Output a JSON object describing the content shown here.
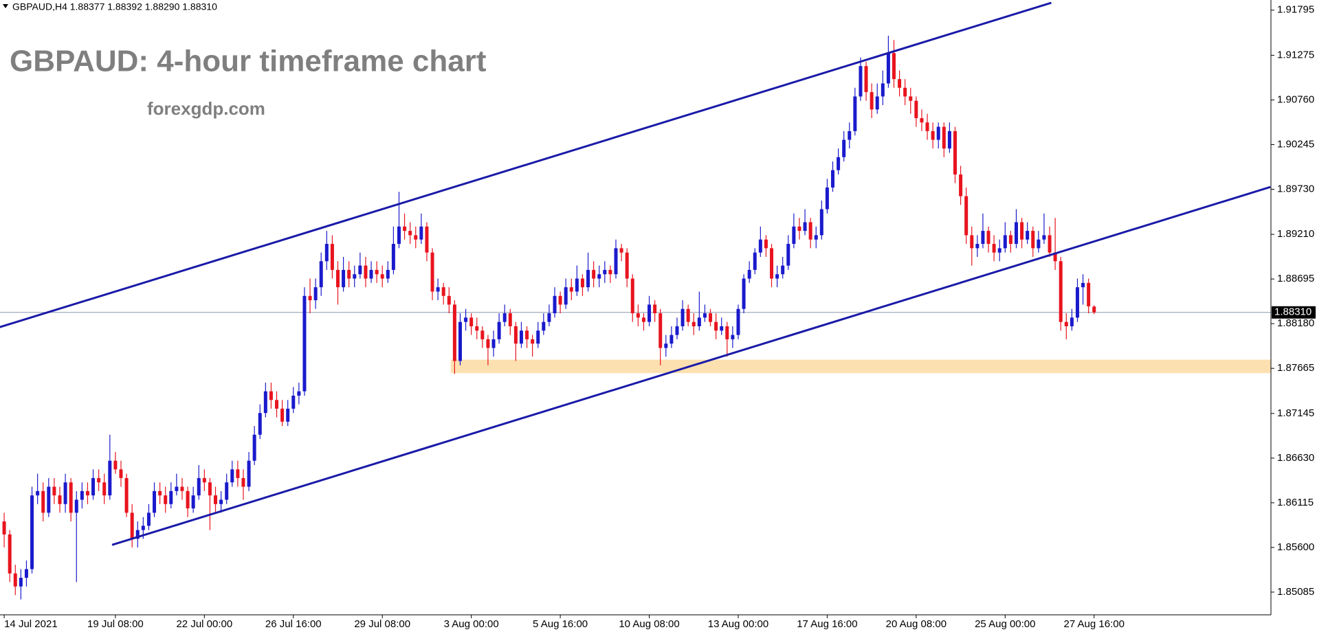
{
  "chart_data": {
    "type": "candlestick",
    "header": "GBPAUD,H4  1.88377 1.88392 1.88290 1.88310",
    "title": "GBPAUD: 4-hour timeframe chart",
    "subtitle": "forexgdp.com",
    "up_color": "#1a1acc",
    "down_color": "#e8141e",
    "ylim": [
      1.84823,
      1.91912
    ],
    "yticks": [
      1.91795,
      1.91275,
      {
        "value": 1.9076,
        "label": "1.90760"
      },
      1.90245,
      {
        "value": 1.8973,
        "label": "1.89730"
      },
      {
        "value": 1.8921,
        "label": "1.89210"
      },
      1.88695,
      {
        "value": 1.8818,
        "label": "1.88180"
      },
      1.87665,
      1.87145,
      {
        "value": 1.8663,
        "label": "1.86630"
      },
      1.86115,
      {
        "value": 1.856,
        "label": "1.85600"
      },
      1.85085
    ],
    "price_line": {
      "value": 1.8831,
      "label": "1.88310"
    },
    "zone": {
      "from": 80.3,
      "low": 1.8761,
      "high": 1.87765,
      "color": "#fde0b0"
    },
    "trendlines": [
      {
        "x": [
          -0.8,
          188.3
        ],
        "y": [
          1.8814,
          1.9188
        ],
        "color": "#1a1aa8"
      },
      {
        "x": [
          19.4,
          227.7
        ],
        "y": [
          1.85629,
          1.89756
        ],
        "color": "#1a1aa8"
      }
    ],
    "categories": [
      "14 Jul 2021",
      null,
      null,
      null,
      null,
      null,
      null,
      null,
      null,
      null,
      null,
      null,
      null,
      null,
      null,
      null,
      null,
      null,
      null,
      null,
      "19 Jul 08:00",
      null,
      null,
      null,
      null,
      null,
      null,
      null,
      null,
      null,
      null,
      null,
      null,
      null,
      null,
      null,
      "22 Jul 00:00",
      null,
      null,
      null,
      null,
      null,
      null,
      null,
      null,
      null,
      null,
      null,
      null,
      null,
      null,
      null,
      "26 Jul 16:00",
      null,
      null,
      null,
      null,
      null,
      null,
      null,
      null,
      null,
      null,
      null,
      null,
      null,
      null,
      null,
      "29 Jul 08:00",
      null,
      null,
      null,
      null,
      null,
      null,
      null,
      null,
      null,
      null,
      null,
      null,
      null,
      null,
      null,
      "3 Aug 00:00",
      null,
      null,
      null,
      null,
      null,
      null,
      null,
      null,
      null,
      null,
      null,
      null,
      null,
      null,
      null,
      "5 Aug 16:00",
      null,
      null,
      null,
      null,
      null,
      null,
      null,
      null,
      null,
      null,
      null,
      null,
      null,
      null,
      null,
      "10 Aug 08:00",
      null,
      null,
      null,
      null,
      null,
      null,
      null,
      null,
      null,
      null,
      null,
      null,
      null,
      null,
      null,
      "13 Aug 00:00",
      null,
      null,
      null,
      null,
      null,
      null,
      null,
      null,
      null,
      null,
      null,
      null,
      null,
      null,
      null,
      "17 Aug 16:00",
      null,
      null,
      null,
      null,
      null,
      null,
      null,
      null,
      null,
      null,
      null,
      null,
      null,
      null,
      null,
      "20 Aug 08:00",
      null,
      null,
      null,
      null,
      null,
      null,
      null,
      null,
      null,
      null,
      null,
      null,
      null,
      null,
      null,
      "25 Aug 00:00",
      null,
      null,
      null,
      null,
      null,
      null,
      null,
      null,
      null,
      null,
      null,
      null,
      null,
      null,
      null,
      "27 Aug 16:00"
    ],
    "candles": [
      [
        1.859,
        1.86,
        1.856,
        1.8575
      ],
      [
        1.8575,
        1.858,
        1.852,
        1.853
      ],
      [
        1.853,
        1.854,
        1.8505,
        1.8515
      ],
      [
        1.8515,
        1.8535,
        1.85,
        1.8525
      ],
      [
        1.8525,
        1.8545,
        1.8515,
        1.8535
      ],
      [
        1.8535,
        1.863,
        1.853,
        1.862
      ],
      [
        1.862,
        1.8645,
        1.861,
        1.8625
      ],
      [
        1.8625,
        1.8635,
        1.859,
        1.86
      ],
      [
        1.86,
        1.864,
        1.8595,
        1.863
      ],
      [
        1.863,
        1.864,
        1.861,
        1.862
      ],
      [
        1.862,
        1.863,
        1.86,
        1.861
      ],
      [
        1.861,
        1.8645,
        1.86,
        1.8635
      ],
      [
        1.8635,
        1.864,
        1.859,
        1.86
      ],
      [
        1.86,
        1.8625,
        1.852,
        1.8615
      ],
      [
        1.8615,
        1.8635,
        1.8605,
        1.8625
      ],
      [
        1.8625,
        1.8635,
        1.861,
        1.862
      ],
      [
        1.862,
        1.865,
        1.8615,
        1.864
      ],
      [
        1.864,
        1.865,
        1.8625,
        1.8635
      ],
      [
        1.8635,
        1.8645,
        1.861,
        1.862
      ],
      [
        1.862,
        1.869,
        1.8615,
        1.866
      ],
      [
        1.866,
        1.867,
        1.8645,
        1.865
      ],
      [
        1.865,
        1.866,
        1.863,
        1.864
      ],
      [
        1.864,
        1.8645,
        1.8595,
        1.86
      ],
      [
        1.86,
        1.861,
        1.856,
        1.857
      ],
      [
        1.857,
        1.859,
        1.856,
        1.858
      ],
      [
        1.858,
        1.8595,
        1.857,
        1.8585
      ],
      [
        1.8585,
        1.861,
        1.858,
        1.86
      ],
      [
        1.86,
        1.8635,
        1.8595,
        1.8625
      ],
      [
        1.8625,
        1.8635,
        1.861,
        1.862
      ],
      [
        1.862,
        1.863,
        1.86,
        1.861
      ],
      [
        1.861,
        1.8635,
        1.8605,
        1.8625
      ],
      [
        1.8625,
        1.8645,
        1.862,
        1.863
      ],
      [
        1.863,
        1.864,
        1.8615,
        1.8625
      ],
      [
        1.8625,
        1.863,
        1.8595,
        1.8605
      ],
      [
        1.8605,
        1.863,
        1.86,
        1.862
      ],
      [
        1.862,
        1.8655,
        1.8615,
        1.864
      ],
      [
        1.864,
        1.865,
        1.8625,
        1.8635
      ],
      [
        1.8635,
        1.864,
        1.858,
        1.862
      ],
      [
        1.862,
        1.863,
        1.86,
        1.861
      ],
      [
        1.861,
        1.8625,
        1.86,
        1.8615
      ],
      [
        1.8615,
        1.8645,
        1.861,
        1.8635
      ],
      [
        1.8635,
        1.866,
        1.863,
        1.865
      ],
      [
        1.865,
        1.866,
        1.863,
        1.864
      ],
      [
        1.864,
        1.865,
        1.8615,
        1.863
      ],
      [
        1.863,
        1.867,
        1.8625,
        1.866
      ],
      [
        1.866,
        1.87,
        1.8655,
        1.869
      ],
      [
        1.869,
        1.8725,
        1.8685,
        1.8715
      ],
      [
        1.8715,
        1.875,
        1.871,
        1.874
      ],
      [
        1.874,
        1.875,
        1.872,
        1.873
      ],
      [
        1.873,
        1.874,
        1.871,
        1.872
      ],
      [
        1.872,
        1.873,
        1.87,
        1.8705
      ],
      [
        1.8705,
        1.873,
        1.87,
        1.872
      ],
      [
        1.872,
        1.8745,
        1.8715,
        1.8735
      ],
      [
        1.8735,
        1.875,
        1.8725,
        1.874
      ],
      [
        1.874,
        1.886,
        1.8735,
        1.885
      ],
      [
        1.885,
        1.887,
        1.883,
        1.8845
      ],
      [
        1.8845,
        1.887,
        1.8835,
        1.886
      ],
      [
        1.886,
        1.89,
        1.885,
        1.889
      ],
      [
        1.889,
        1.8925,
        1.888,
        1.891
      ],
      [
        1.891,
        1.892,
        1.887,
        1.888
      ],
      [
        1.888,
        1.889,
        1.884,
        1.886
      ],
      [
        1.886,
        1.8895,
        1.8855,
        1.888
      ],
      [
        1.888,
        1.889,
        1.886,
        1.887
      ],
      [
        1.887,
        1.8885,
        1.886,
        1.8875
      ],
      [
        1.8875,
        1.89,
        1.887,
        1.8885
      ],
      [
        1.8885,
        1.8895,
        1.886,
        1.887
      ],
      [
        1.887,
        1.889,
        1.8865,
        1.888
      ],
      [
        1.888,
        1.889,
        1.8865,
        1.8875
      ],
      [
        1.8875,
        1.8885,
        1.886,
        1.887
      ],
      [
        1.887,
        1.889,
        1.8865,
        1.888
      ],
      [
        1.888,
        1.893,
        1.8875,
        1.891
      ],
      [
        1.891,
        1.897,
        1.8905,
        1.893
      ],
      [
        1.893,
        1.8945,
        1.8915,
        1.8925
      ],
      [
        1.8925,
        1.8935,
        1.891,
        1.892
      ],
      [
        1.892,
        1.893,
        1.8905,
        1.8915
      ],
      [
        1.8915,
        1.8945,
        1.891,
        1.893
      ],
      [
        1.893,
        1.8935,
        1.889,
        1.89
      ],
      [
        1.89,
        1.8905,
        1.8845,
        1.8855
      ],
      [
        1.8855,
        1.887,
        1.8845,
        1.886
      ],
      [
        1.886,
        1.8865,
        1.884,
        1.885
      ],
      [
        1.885,
        1.886,
        1.883,
        1.884
      ],
      [
        1.884,
        1.8845,
        1.876,
        1.8775
      ],
      [
        1.8775,
        1.883,
        1.877,
        1.882
      ],
      [
        1.882,
        1.8835,
        1.881,
        1.8825
      ],
      [
        1.8825,
        1.883,
        1.8805,
        1.8815
      ],
      [
        1.8815,
        1.8825,
        1.88,
        1.881
      ],
      [
        1.881,
        1.8815,
        1.879,
        1.88
      ],
      [
        1.88,
        1.8805,
        1.877,
        1.879
      ],
      [
        1.879,
        1.881,
        1.878,
        1.88
      ],
      [
        1.88,
        1.883,
        1.8795,
        1.882
      ],
      [
        1.882,
        1.884,
        1.8815,
        1.883
      ],
      [
        1.883,
        1.8835,
        1.8805,
        1.8815
      ],
      [
        1.8815,
        1.882,
        1.8775,
        1.8795
      ],
      [
        1.8795,
        1.882,
        1.879,
        1.881
      ],
      [
        1.881,
        1.8815,
        1.879,
        1.88
      ],
      [
        1.88,
        1.8805,
        1.878,
        1.8795
      ],
      [
        1.8795,
        1.882,
        1.879,
        1.881
      ],
      [
        1.881,
        1.883,
        1.8805,
        1.882
      ],
      [
        1.882,
        1.884,
        1.8815,
        1.883
      ],
      [
        1.883,
        1.886,
        1.8825,
        1.885
      ],
      [
        1.885,
        1.8855,
        1.883,
        1.884
      ],
      [
        1.884,
        1.887,
        1.8835,
        1.886
      ],
      [
        1.886,
        1.887,
        1.8845,
        1.8855
      ],
      [
        1.8855,
        1.8885,
        1.885,
        1.887
      ],
      [
        1.887,
        1.8875,
        1.885,
        1.886
      ],
      [
        1.886,
        1.89,
        1.8855,
        1.888
      ],
      [
        1.888,
        1.889,
        1.886,
        1.887
      ],
      [
        1.887,
        1.8885,
        1.886,
        1.8875
      ],
      [
        1.8875,
        1.889,
        1.8865,
        1.888
      ],
      [
        1.888,
        1.8885,
        1.8865,
        1.8875
      ],
      [
        1.8875,
        1.8915,
        1.887,
        1.8905
      ],
      [
        1.8905,
        1.891,
        1.889,
        1.89
      ],
      [
        1.89,
        1.8905,
        1.886,
        1.887
      ],
      [
        1.887,
        1.8875,
        1.882,
        1.883
      ],
      [
        1.883,
        1.884,
        1.8815,
        1.8825
      ],
      [
        1.8825,
        1.883,
        1.881,
        1.882
      ],
      [
        1.882,
        1.885,
        1.8815,
        1.884
      ],
      [
        1.884,
        1.8845,
        1.882,
        1.883
      ],
      [
        1.883,
        1.8835,
        1.877,
        1.879
      ],
      [
        1.879,
        1.8805,
        1.878,
        1.8795
      ],
      [
        1.8795,
        1.8815,
        1.879,
        1.8805
      ],
      [
        1.8805,
        1.8825,
        1.88,
        1.8815
      ],
      [
        1.8815,
        1.8845,
        1.881,
        1.8835
      ],
      [
        1.8835,
        1.884,
        1.8815,
        1.882
      ],
      [
        1.882,
        1.883,
        1.8805,
        1.8815
      ],
      [
        1.8815,
        1.8855,
        1.881,
        1.8825
      ],
      [
        1.8825,
        1.884,
        1.882,
        1.883
      ],
      [
        1.883,
        1.8835,
        1.8815,
        1.882
      ],
      [
        1.882,
        1.883,
        1.88,
        1.881
      ],
      [
        1.881,
        1.8825,
        1.8805,
        1.8815
      ],
      [
        1.8815,
        1.882,
        1.878,
        1.88
      ],
      [
        1.88,
        1.8815,
        1.879,
        1.8805
      ],
      [
        1.8805,
        1.884,
        1.88,
        1.8835
      ],
      [
        1.8835,
        1.8875,
        1.883,
        1.887
      ],
      [
        1.887,
        1.889,
        1.8865,
        1.888
      ],
      [
        1.888,
        1.8905,
        1.8875,
        1.89
      ],
      [
        1.89,
        1.893,
        1.8895,
        1.8915
      ],
      [
        1.8915,
        1.892,
        1.8895,
        1.8905
      ],
      [
        1.8905,
        1.891,
        1.886,
        1.887
      ],
      [
        1.887,
        1.8885,
        1.886,
        1.8875
      ],
      [
        1.8875,
        1.8895,
        1.887,
        1.8885
      ],
      [
        1.8885,
        1.892,
        1.888,
        1.891
      ],
      [
        1.891,
        1.8945,
        1.8905,
        1.893
      ],
      [
        1.893,
        1.894,
        1.8915,
        1.8925
      ],
      [
        1.8925,
        1.895,
        1.892,
        1.8935
      ],
      [
        1.8935,
        1.894,
        1.8905,
        1.8915
      ],
      [
        1.8915,
        1.893,
        1.8905,
        1.892
      ],
      [
        1.892,
        1.896,
        1.8915,
        1.895
      ],
      [
        1.895,
        1.8985,
        1.8945,
        1.8975
      ],
      [
        1.8975,
        1.9005,
        1.897,
        1.8995
      ],
      [
        1.8995,
        1.902,
        1.899,
        1.901
      ],
      [
        1.901,
        1.904,
        1.9005,
        1.903
      ],
      [
        1.903,
        1.905,
        1.902,
        1.904
      ],
      [
        1.904,
        1.909,
        1.9035,
        1.908
      ],
      [
        1.908,
        1.9125,
        1.9075,
        1.9115
      ],
      [
        1.9115,
        1.912,
        1.9075,
        1.9085
      ],
      [
        1.9085,
        1.9095,
        1.9055,
        1.9065
      ],
      [
        1.9065,
        1.9095,
        1.906,
        1.908
      ],
      [
        1.908,
        1.911,
        1.907,
        1.9095
      ],
      [
        1.9095,
        1.915,
        1.909,
        1.913
      ],
      [
        1.913,
        1.9145,
        1.909,
        1.91
      ],
      [
        1.91,
        1.911,
        1.908,
        1.909
      ],
      [
        1.909,
        1.91,
        1.907,
        1.908
      ],
      [
        1.908,
        1.909,
        1.906,
        1.9075
      ],
      [
        1.9075,
        1.908,
        1.9045,
        1.9055
      ],
      [
        1.9055,
        1.9065,
        1.904,
        1.905
      ],
      [
        1.905,
        1.906,
        1.903,
        1.904
      ],
      [
        1.904,
        1.905,
        1.902,
        1.903
      ],
      [
        1.903,
        1.905,
        1.902,
        1.9045
      ],
      [
        1.9045,
        1.905,
        1.901,
        1.902
      ],
      [
        1.902,
        1.905,
        1.9015,
        1.904
      ],
      [
        1.904,
        1.9045,
        1.898,
        1.899
      ],
      [
        1.899,
        1.9,
        1.8955,
        1.8965
      ],
      [
        1.8965,
        1.8975,
        1.891,
        1.892
      ],
      [
        1.892,
        1.893,
        1.8885,
        1.8905
      ],
      [
        1.8905,
        1.892,
        1.8895,
        1.891
      ],
      [
        1.891,
        1.8945,
        1.8905,
        1.8925
      ],
      [
        1.8925,
        1.893,
        1.89,
        1.891
      ],
      [
        1.891,
        1.892,
        1.889,
        1.89
      ],
      [
        1.89,
        1.8915,
        1.889,
        1.8905
      ],
      [
        1.8905,
        1.8935,
        1.89,
        1.892
      ],
      [
        1.892,
        1.8925,
        1.89,
        1.891
      ],
      [
        1.891,
        1.895,
        1.8905,
        1.8935
      ],
      [
        1.8935,
        1.894,
        1.8905,
        1.8915
      ],
      [
        1.8915,
        1.8935,
        1.891,
        1.8925
      ],
      [
        1.8925,
        1.893,
        1.8895,
        1.8905
      ],
      [
        1.8905,
        1.8925,
        1.89,
        1.8915
      ],
      [
        1.8915,
        1.8945,
        1.891,
        1.892
      ],
      [
        1.892,
        1.893,
        1.8895,
        1.89
      ],
      [
        1.89,
        1.894,
        1.888,
        1.889
      ],
      [
        1.889,
        1.8895,
        1.881,
        1.882
      ],
      [
        1.882,
        1.883,
        1.88,
        1.8815
      ],
      [
        1.8815,
        1.8835,
        1.881,
        1.8825
      ],
      [
        1.8825,
        1.887,
        1.882,
        1.886
      ],
      [
        1.886,
        1.8875,
        1.884,
        1.8865
      ],
      [
        1.8865,
        1.887,
        1.883,
        1.8838
      ],
      [
        1.88377,
        1.88392,
        1.8829,
        1.8831
      ]
    ]
  }
}
